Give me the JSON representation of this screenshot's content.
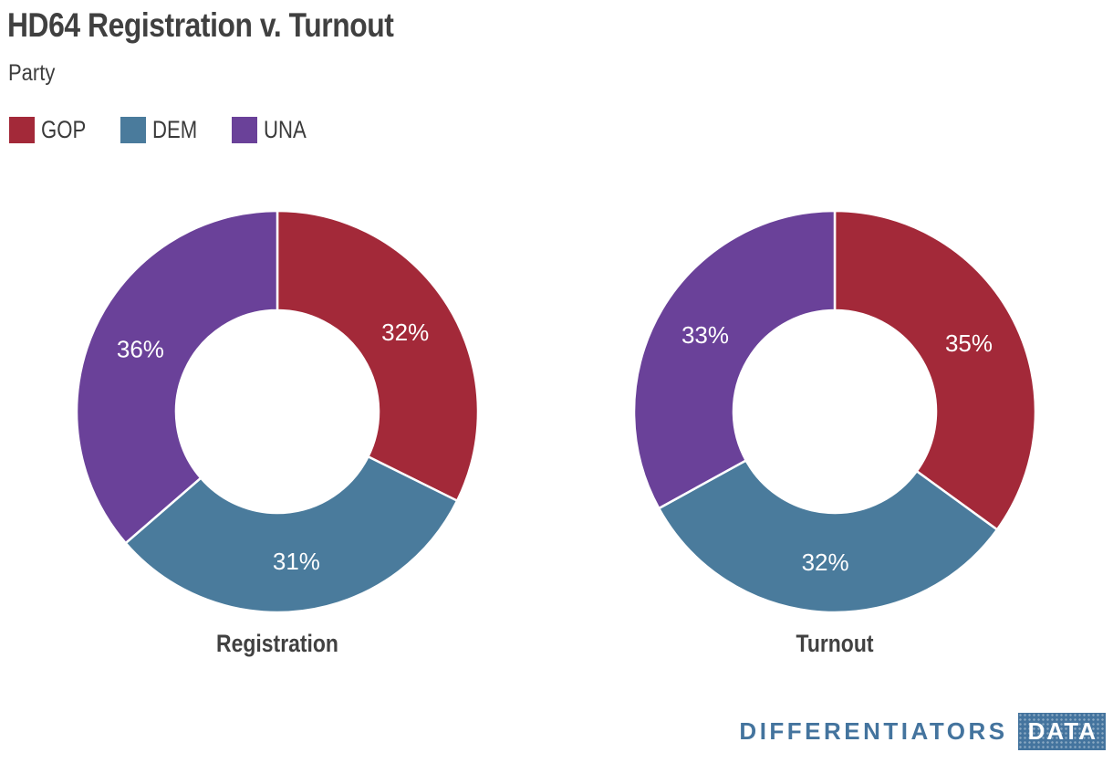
{
  "header": {
    "title": "HD64 Registration v. Turnout",
    "legend_title": "Party"
  },
  "legend": {
    "items": [
      {
        "label": "GOP",
        "color": "#a32939"
      },
      {
        "label": "DEM",
        "color": "#4a7b9c"
      },
      {
        "label": "UNA",
        "color": "#6a4199"
      }
    ]
  },
  "chart_data": [
    {
      "type": "pie",
      "subtype": "donut",
      "title": "Registration",
      "categories": [
        "GOP",
        "DEM",
        "UNA"
      ],
      "values": [
        32,
        31,
        36
      ],
      "labels": [
        "32%",
        "31%",
        "36%"
      ],
      "colors": [
        "#a32939",
        "#4a7b9c",
        "#6a4199"
      ],
      "start_angle_deg": 0,
      "direction": "clockwise",
      "inner_radius_ratio": 0.505,
      "label_color": "#ffffff",
      "legend_position": "top-left"
    },
    {
      "type": "pie",
      "subtype": "donut",
      "title": "Turnout",
      "categories": [
        "GOP",
        "DEM",
        "UNA"
      ],
      "values": [
        35,
        32,
        33
      ],
      "labels": [
        "35%",
        "32%",
        "33%"
      ],
      "colors": [
        "#a32939",
        "#4a7b9c",
        "#6a4199"
      ],
      "start_angle_deg": 0,
      "direction": "clockwise",
      "inner_radius_ratio": 0.505,
      "label_color": "#ffffff",
      "legend_position": "top-left"
    }
  ],
  "footer": {
    "brand_name": "DIFFERENTIATORS",
    "brand_badge": "DATA",
    "brand_color": "#44749e"
  }
}
